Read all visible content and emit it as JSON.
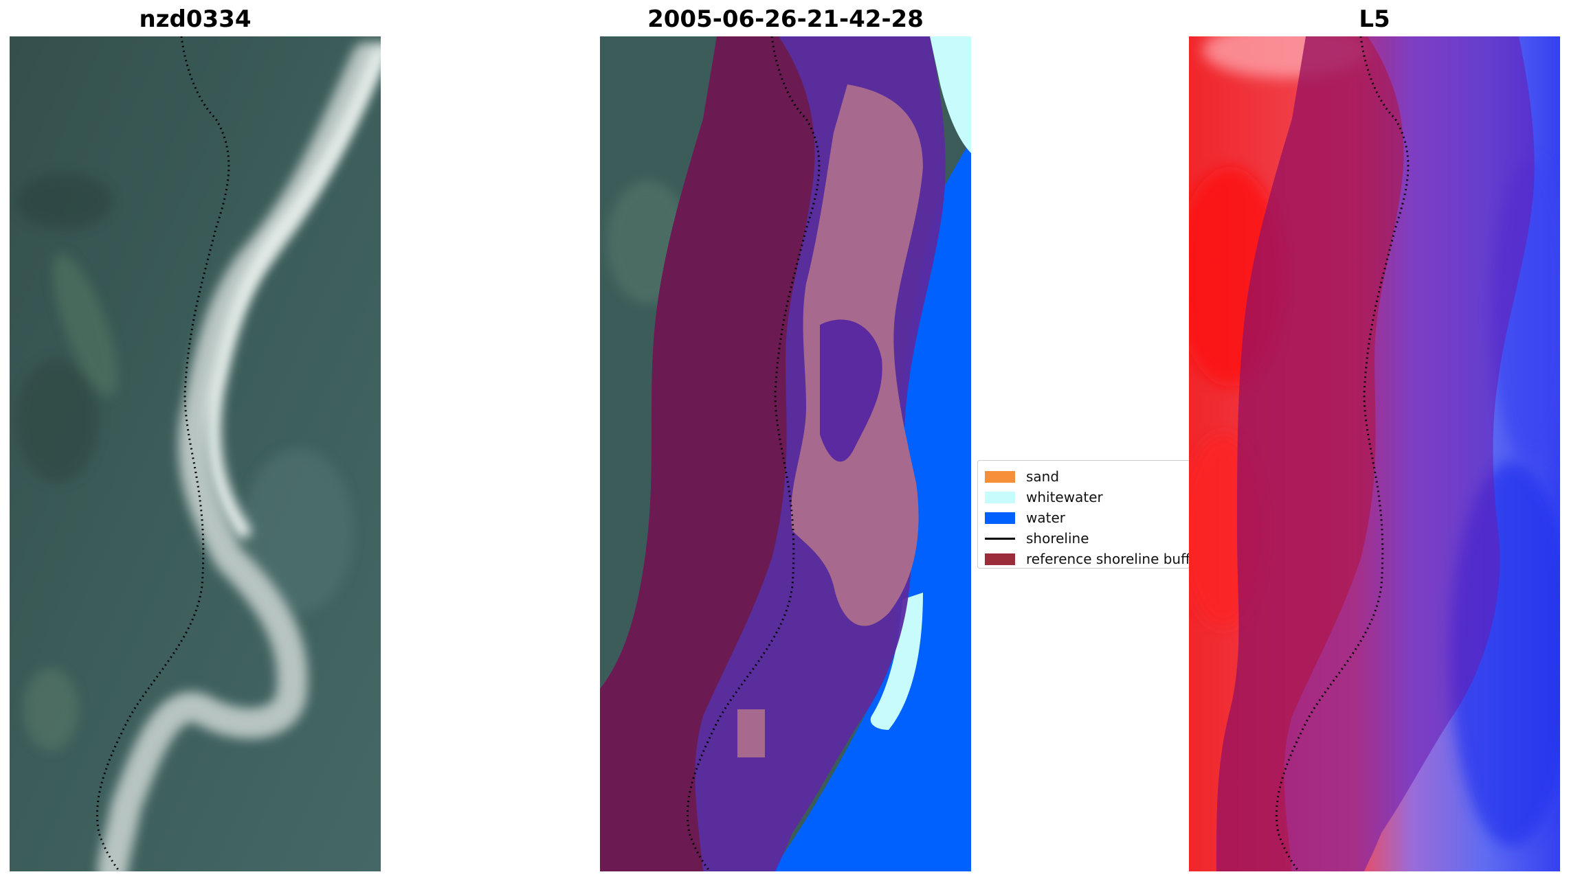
{
  "panels": [
    {
      "title": "nzd0334"
    },
    {
      "title": "2005-06-26-21-42-28"
    },
    {
      "title": "L5"
    }
  ],
  "legend": {
    "entries": [
      {
        "label": "sand",
        "color": "#f58f3a",
        "kind": "patch"
      },
      {
        "label": "whitewater",
        "color": "#c8fcfc",
        "kind": "patch"
      },
      {
        "label": "water",
        "color": "#0061ff",
        "kind": "patch"
      },
      {
        "label": "shoreline",
        "color": "#000000",
        "kind": "line"
      },
      {
        "label": "reference shoreline buffer",
        "color": "#9b2d3a",
        "kind": "patch"
      }
    ]
  },
  "colors": {
    "land": "#3a5a58",
    "river_bed": "#b9c6c3",
    "buffer_overlay": "#7a1f4f",
    "sand_class": "#a8698e",
    "water_class": "#0061ff",
    "whitewater_class": "#c8fcfc",
    "index_land": "#f0262a",
    "index_water": "#3440f0"
  }
}
